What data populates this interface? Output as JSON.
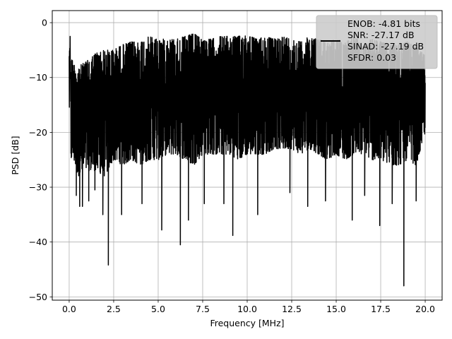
{
  "chart_data": {
    "type": "line",
    "title": "",
    "xlabel": "Frequency [MHz]",
    "ylabel": "PSD [dB]",
    "xlim": [
      -0.95,
      20.95
    ],
    "ylim": [
      -50.6,
      2.2
    ],
    "grid": true,
    "x_ticks": [
      0.0,
      2.5,
      5.0,
      7.5,
      10.0,
      12.5,
      15.0,
      17.5,
      20.0
    ],
    "x_tick_labels": [
      "0.0",
      "2.5",
      "5.0",
      "7.5",
      "10.0",
      "12.5",
      "15.0",
      "17.5",
      "20.0"
    ],
    "y_ticks": [
      0,
      -10,
      -20,
      -30,
      -40,
      -50
    ],
    "y_tick_labels": [
      "0",
      "−10",
      "−20",
      "−30",
      "−40",
      "−50"
    ],
    "series_color": "#000000",
    "legend": {
      "placement": "upper-right",
      "lines": [
        "ENOB: -4.81 bits",
        "SNR: -27.17 dB",
        "SINAD: -27.19 dB",
        "SFDR: 0.03"
      ]
    },
    "series": [
      {
        "x": [
          0.0,
          0.05,
          0.1,
          0.25,
          0.5,
          1.0,
          1.5,
          2.0,
          2.5,
          3.0,
          3.5,
          4.0,
          4.5,
          5.0,
          5.5,
          6.0,
          6.5,
          7.0,
          7.5,
          8.0,
          8.5,
          9.0,
          9.5,
          10.0,
          10.5,
          11.0,
          11.5,
          12.0,
          12.5,
          13.0,
          13.5,
          14.0,
          14.5,
          15.0,
          15.5,
          16.0,
          16.5,
          17.0,
          17.5,
          18.0,
          18.5,
          19.0,
          19.5,
          20.0
        ],
        "envelope_max": [
          -3.5,
          -2.0,
          -6.0,
          -7.5,
          -8.0,
          -7.0,
          -5.5,
          -5.0,
          -5.0,
          -4.0,
          -3.5,
          -3.5,
          -2.5,
          -3.0,
          -3.0,
          -3.0,
          -2.5,
          -2.0,
          -3.0,
          -3.0,
          -2.5,
          -2.5,
          -2.5,
          -2.0,
          -3.0,
          -2.5,
          -3.0,
          -2.5,
          -3.0,
          -3.5,
          -2.5,
          -3.0,
          -3.5,
          -3.0,
          -3.5,
          -2.5,
          -4.0,
          -3.0,
          -3.5,
          -4.0,
          -4.0,
          -3.5,
          -4.5,
          -6.0
        ],
        "envelope_min": [
          -17.0,
          -12.0,
          -25.0,
          -25.0,
          -28.0,
          -27.0,
          -27.0,
          -28.0,
          -25.0,
          -26.0,
          -25.0,
          -26.0,
          -25.0,
          -25.0,
          -24.0,
          -24.0,
          -25.0,
          -26.0,
          -24.0,
          -24.0,
          -24.0,
          -24.0,
          -25.0,
          -24.0,
          -24.0,
          -24.0,
          -23.0,
          -23.0,
          -23.0,
          -24.0,
          -23.0,
          -24.0,
          -25.0,
          -24.0,
          -25.0,
          -24.0,
          -24.0,
          -25.0,
          -25.0,
          -26.0,
          -26.0,
          -25.0,
          -26.0,
          -20.0
        ],
        "spikes": [
          {
            "x": 0.4,
            "y": -31.5
          },
          {
            "x": 0.6,
            "y": -33.5
          },
          {
            "x": 0.75,
            "y": -33.5
          },
          {
            "x": 1.1,
            "y": -32.5
          },
          {
            "x": 1.45,
            "y": -30.5
          },
          {
            "x": 1.9,
            "y": -35.0
          },
          {
            "x": 2.2,
            "y": -44.2
          },
          {
            "x": 2.95,
            "y": -35.0
          },
          {
            "x": 4.1,
            "y": -33.0
          },
          {
            "x": 5.2,
            "y": -37.8
          },
          {
            "x": 6.25,
            "y": -40.5
          },
          {
            "x": 6.7,
            "y": -36.0
          },
          {
            "x": 7.6,
            "y": -33.0
          },
          {
            "x": 8.7,
            "y": -33.0
          },
          {
            "x": 9.2,
            "y": -38.8
          },
          {
            "x": 10.6,
            "y": -35.0
          },
          {
            "x": 12.4,
            "y": -31.0
          },
          {
            "x": 13.4,
            "y": -33.5
          },
          {
            "x": 14.4,
            "y": -32.5
          },
          {
            "x": 15.9,
            "y": -36.0
          },
          {
            "x": 16.6,
            "y": -31.5
          },
          {
            "x": 17.45,
            "y": -37.0
          },
          {
            "x": 18.15,
            "y": -33.0
          },
          {
            "x": 18.8,
            "y": -48.0
          },
          {
            "x": 19.5,
            "y": -32.5
          }
        ]
      }
    ]
  }
}
